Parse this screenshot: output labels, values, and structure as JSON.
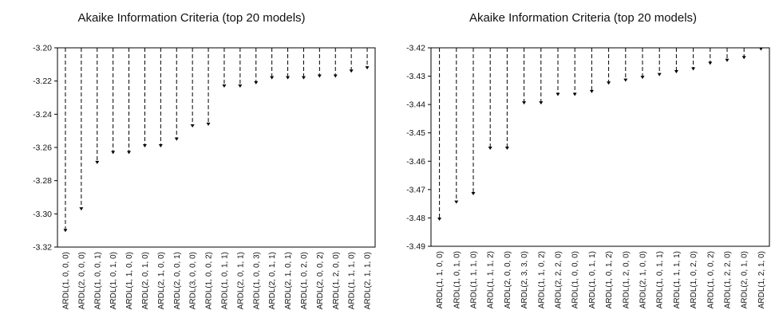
{
  "chart_data": [
    {
      "type": "bar",
      "title": "Akaike Information Criteria (top 20 models)",
      "xlabel": "",
      "ylabel": "",
      "ylim": [
        -3.32,
        -3.2
      ],
      "yticks": [
        "-3.20",
        "-3.22",
        "-3.24",
        "-3.26",
        "-3.28",
        "-3.30",
        "-3.32"
      ],
      "grid": false,
      "categories": [
        "ARDL(1, 0, 0, 0)",
        "ARDL(2, 0, 0, 0)",
        "ARDL(1, 0, 0, 1)",
        "ARDL(1, 0, 1, 0)",
        "ARDL(1, 1, 0, 0)",
        "ARDL(2, 0, 1, 0)",
        "ARDL(2, 1, 0, 0)",
        "ARDL(2, 0, 0, 1)",
        "ARDL(3, 0, 0, 0)",
        "ARDL(1, 0, 0, 2)",
        "ARDL(1, 0, 1, 1)",
        "ARDL(2, 0, 1, 1)",
        "ARDL(1, 0, 0, 3)",
        "ARDL(2, 0, 1, 1)",
        "ARDL(2, 1, 0, 1)",
        "ARDL(1, 0, 2, 0)",
        "ARDL(2, 0, 0, 2)",
        "ARDL(1, 2, 0, 0)",
        "ARDL(1, 1, 1, 0)",
        "ARDL(2, 1, 1, 0)"
      ],
      "values": [
        -3.311,
        -3.298,
        -3.27,
        -3.264,
        -3.264,
        -3.26,
        -3.26,
        -3.256,
        -3.248,
        -3.247,
        -3.224,
        -3.224,
        -3.222,
        -3.219,
        -3.219,
        -3.219,
        -3.218,
        -3.218,
        -3.215,
        -3.213
      ]
    },
    {
      "type": "bar",
      "title": "Akaike Information Criteria (top 20 models)",
      "xlabel": "",
      "ylabel": "",
      "ylim": [
        -3.49,
        -3.42
      ],
      "yticks": [
        "-3.42",
        "-3.43",
        "-3.44",
        "-3.45",
        "-3.46",
        "-3.47",
        "-3.48",
        "-3.49"
      ],
      "grid": false,
      "categories": [
        "ARDL(1, 1, 0, 0)",
        "ARDL(1, 0, 1, 0)",
        "ARDL(1, 1, 1, 0)",
        "ARDL(1, 1, 1, 2)",
        "ARDL(2, 0, 0, 0)",
        "ARDL(2, 3, 3, 0)",
        "ARDL(1, 1, 0, 2)",
        "ARDL(2, 2, 2, 0)",
        "ARDL(1, 0, 0, 0)",
        "ARDL(1, 0, 1, 1)",
        "ARDL(1, 0, 1, 2)",
        "ARDL(1, 2, 0, 0)",
        "ARDL(2, 1, 0, 0)",
        "ARDL(1, 0, 1, 1)",
        "ARDL(1, 1, 1, 1)",
        "ARDL(1, 0, 2, 0)",
        "ARDL(1, 0, 0, 2)",
        "ARDL(1, 2, 2, 0)",
        "ARDL(2, 0, 1, 0)",
        "ARDL(1, 2, 1, 0)"
      ],
      "values": [
        -3.481,
        -3.475,
        -3.472,
        -3.456,
        -3.456,
        -3.44,
        -3.44,
        -3.437,
        -3.437,
        -3.436,
        -3.433,
        -3.432,
        -3.431,
        -3.43,
        -3.429,
        -3.428,
        -3.426,
        -3.425,
        -3.424,
        -3.421
      ]
    }
  ]
}
